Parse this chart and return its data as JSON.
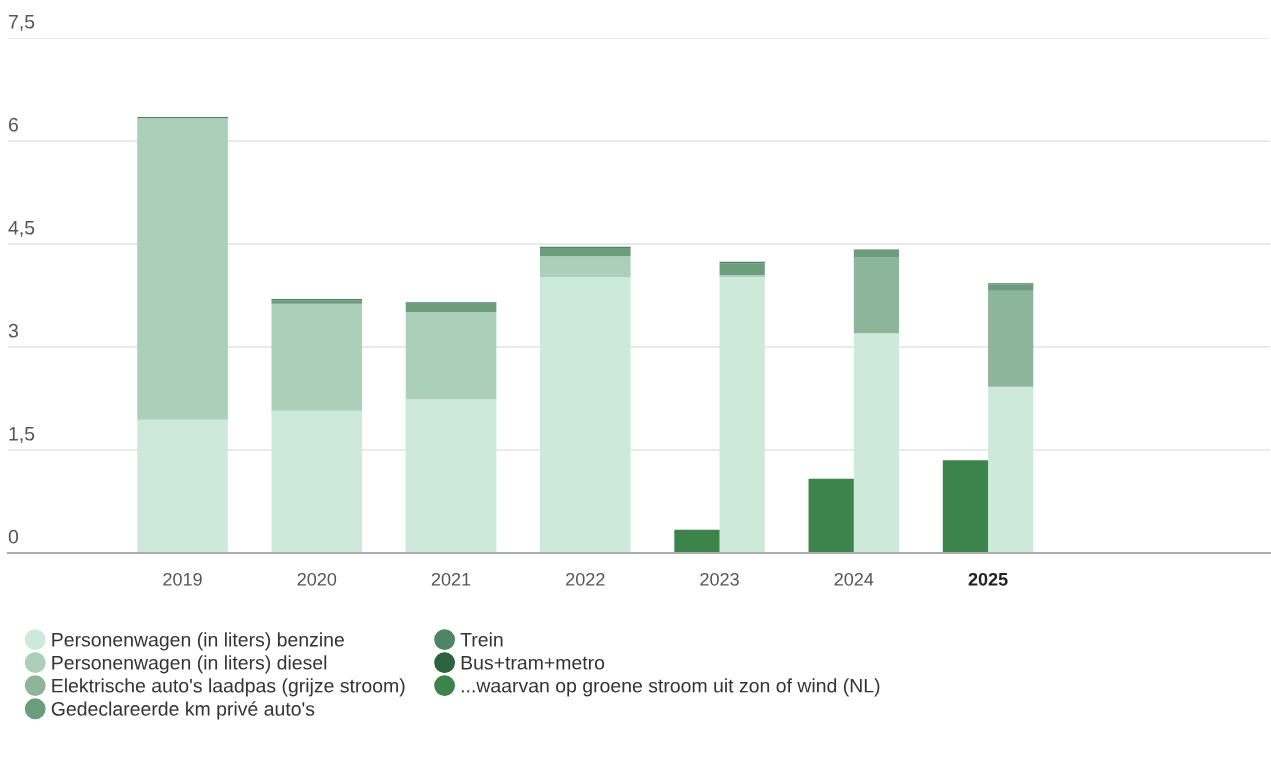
{
  "chart_data": [
    {
      "type": "bar",
      "stacked": true,
      "categories": [
        "2019",
        "2020",
        "2021",
        "2022",
        "2023",
        "2024",
        "2025",
        null,
        null
      ],
      "series": [
        {
          "name": "Personenwagen (in liters) benzine",
          "color": "#cde9da",
          "values": [
            1.94,
            2.07,
            2.24,
            4.02,
            4.02,
            3.2,
            2.42,
            null,
            null
          ]
        },
        {
          "name": "Personenwagen (in liters) diesel",
          "color": "#accfb9",
          "values": [
            4.39,
            1.56,
            1.27,
            0.3,
            0.03,
            null,
            null,
            null,
            null
          ]
        },
        {
          "name": "Elektrische auto's laadpas (grijze stroom)",
          "color": "#8db59a",
          "values": [
            null,
            null,
            null,
            null,
            null,
            1.11,
            1.4,
            null,
            null
          ]
        },
        {
          "name": "Gedeclareerde km privé auto's",
          "color": "#6b9c7c",
          "values": [
            null,
            0.05,
            0.12,
            0.12,
            0.17,
            0.09,
            0.09,
            null,
            null
          ]
        },
        {
          "name": "Trein",
          "color": "#4f8466",
          "values": [
            0.02,
            0.02,
            0.02,
            0.02,
            0.02,
            0.02,
            0.01,
            null,
            null
          ]
        },
        {
          "name": "Bus+tram+metro",
          "color": "#2d6240",
          "values": [
            null,
            null,
            null,
            null,
            null,
            null,
            0.01,
            null,
            null
          ]
        }
      ],
      "ylim": [
        0,
        7.5
      ],
      "yticks": [
        0,
        {
          "value": 1.5,
          "label": "1,5"
        },
        3,
        {
          "value": 4.5,
          "label": "4,5"
        },
        6,
        {
          "value": 7.5,
          "label": "7,5"
        }
      ],
      "grid": "y",
      "legend": "bottom left"
    },
    {
      "type": "bar",
      "categories": [
        "2019",
        "2020",
        "2021",
        "2022",
        "2023",
        "2024",
        "2025",
        null,
        null
      ],
      "series": [
        {
          "name": "...waarvan op groene stroom uit zon of wind (NL)",
          "color": "#3c8449",
          "values": [
            null,
            null,
            null,
            null,
            0.34,
            1.08,
            1.35,
            null,
            null
          ]
        }
      ],
      "ylim": [
        0,
        7.5
      ],
      "tick_labels": false
    }
  ]
}
